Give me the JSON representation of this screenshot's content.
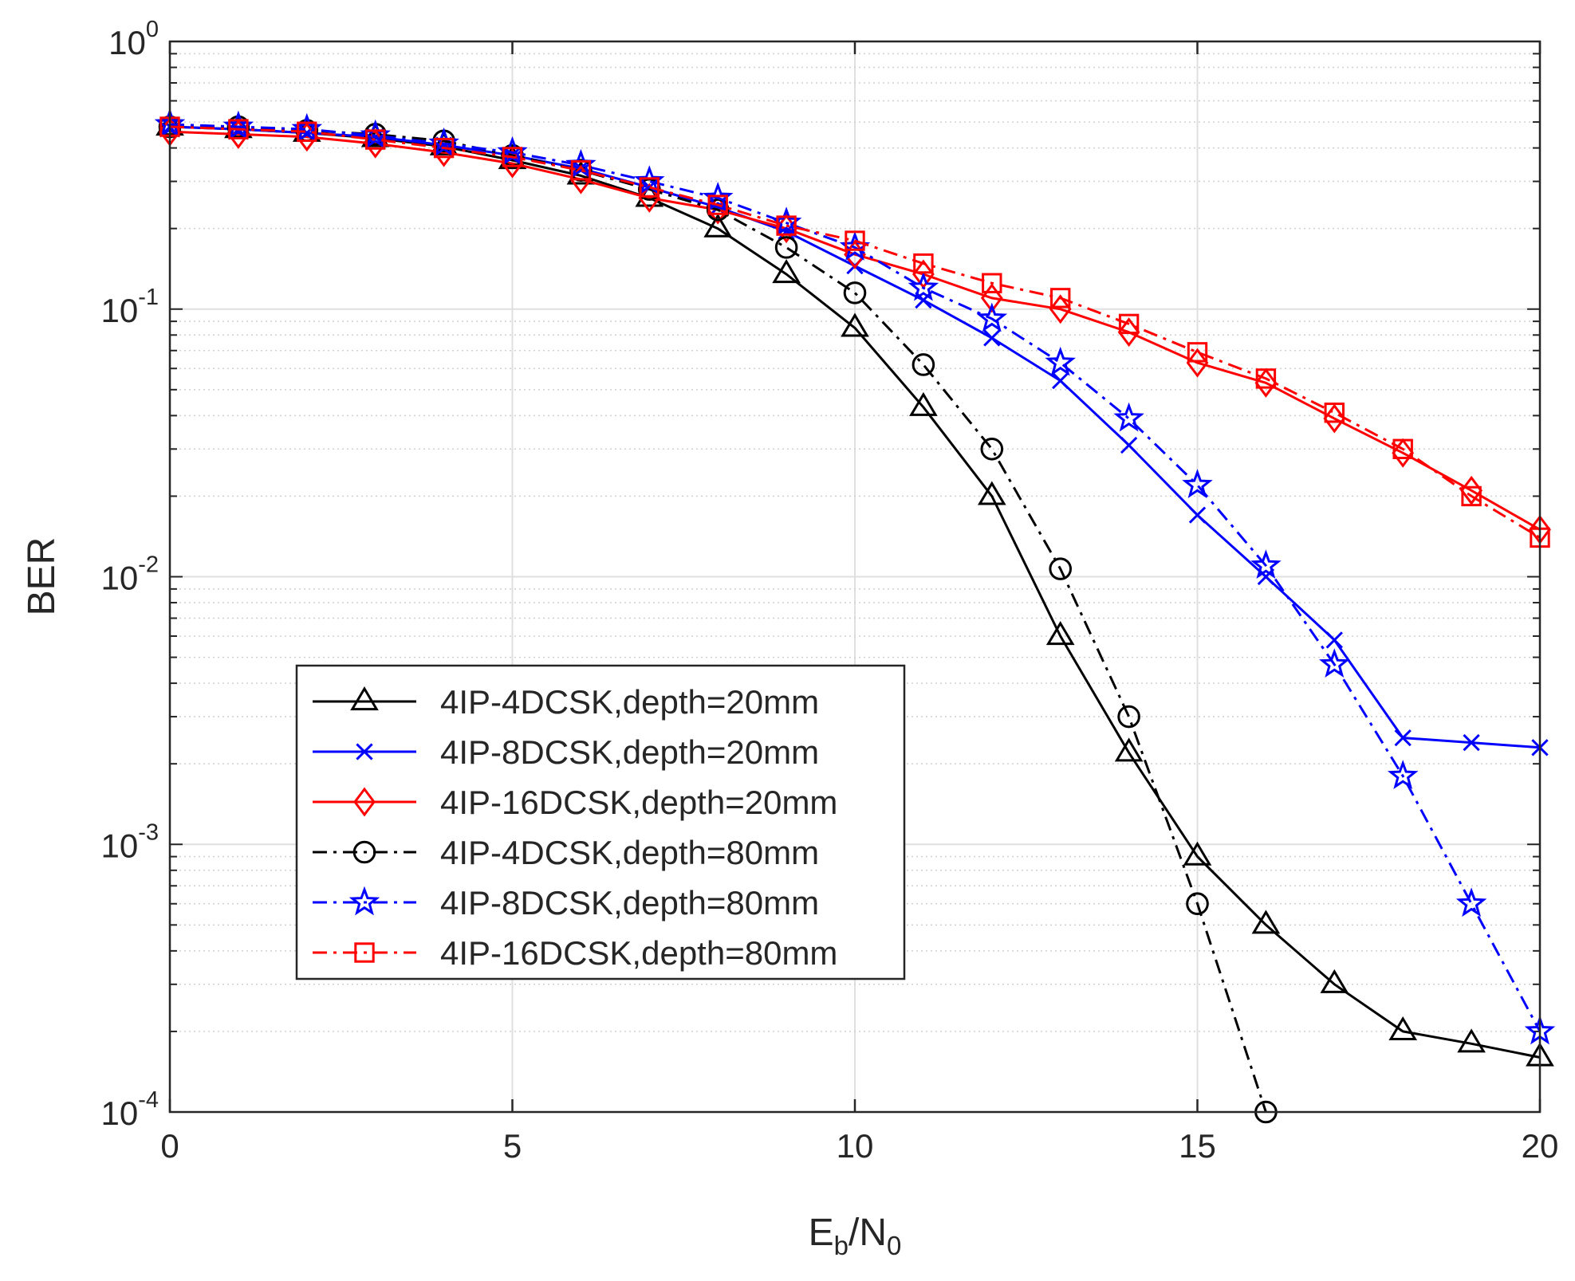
{
  "chart_data": {
    "type": "line",
    "title": "",
    "xlabel": {
      "main": "E",
      "sub1": "b",
      "mid": "/N",
      "sub2": "0"
    },
    "ylabel": "BER",
    "xlim": [
      0,
      20
    ],
    "ylim": [
      0.0001,
      1
    ],
    "yscale": "log",
    "grid": true,
    "legend_position": "lower-left",
    "x_ticks": [
      {
        "value": 0,
        "label": "0"
      },
      {
        "value": 5,
        "label": "5"
      },
      {
        "value": 10,
        "label": "10"
      },
      {
        "value": 15,
        "label": "15"
      },
      {
        "value": 20,
        "label": "20"
      }
    ],
    "y_ticks": [
      {
        "value": 1,
        "base": "10",
        "exp": "0"
      },
      {
        "value": 0.1,
        "base": "10",
        "exp": "-1"
      },
      {
        "value": 0.01,
        "base": "10",
        "exp": "-2"
      },
      {
        "value": 0.001,
        "base": "10",
        "exp": "-3"
      },
      {
        "value": 0.0001,
        "base": "10",
        "exp": "-4"
      }
    ],
    "series": [
      {
        "name": "4IP-4DCSK,depth=20mm",
        "color": "#000000",
        "dash": "solid",
        "marker": "triangle",
        "x": [
          0,
          1,
          2,
          3,
          4,
          5,
          6,
          7,
          8,
          9,
          10,
          11,
          12,
          13,
          14,
          15,
          16,
          17,
          18,
          19,
          20
        ],
        "values": [
          0.48,
          0.47,
          0.455,
          0.435,
          0.405,
          0.36,
          0.315,
          0.26,
          0.2,
          0.135,
          0.085,
          0.043,
          0.02,
          0.006,
          0.0022,
          0.0009,
          0.0005,
          0.0003,
          0.0002,
          0.00018,
          0.00016
        ]
      },
      {
        "name": "4IP-8DCSK,depth=20mm",
        "color": "#0000ff",
        "dash": "solid",
        "marker": "x",
        "x": [
          0,
          1,
          2,
          3,
          4,
          5,
          6,
          7,
          8,
          9,
          10,
          11,
          12,
          13,
          14,
          15,
          16,
          17,
          18,
          19,
          20
        ],
        "values": [
          0.48,
          0.47,
          0.455,
          0.44,
          0.41,
          0.375,
          0.335,
          0.285,
          0.24,
          0.195,
          0.145,
          0.108,
          0.078,
          0.054,
          0.031,
          0.017,
          0.01,
          0.0058,
          0.0025,
          0.0024,
          0.0023
        ]
      },
      {
        "name": "4IP-16DCSK,depth=20mm",
        "color": "#ff0000",
        "dash": "solid",
        "marker": "diamond",
        "x": [
          0,
          1,
          2,
          3,
          4,
          5,
          6,
          7,
          8,
          9,
          10,
          11,
          12,
          13,
          14,
          15,
          16,
          17,
          18,
          19,
          20
        ],
        "values": [
          0.46,
          0.45,
          0.44,
          0.415,
          0.385,
          0.35,
          0.305,
          0.26,
          0.235,
          0.2,
          0.16,
          0.135,
          0.11,
          0.1,
          0.082,
          0.063,
          0.053,
          0.039,
          0.029,
          0.021,
          0.015
        ]
      },
      {
        "name": "4IP-4DCSK,depth=80mm",
        "color": "#000000",
        "dash": "dashdot",
        "marker": "circle",
        "x": [
          0,
          1,
          2,
          3,
          4,
          5,
          6,
          7,
          8,
          9,
          10,
          11,
          12,
          13,
          14,
          15,
          16
        ],
        "values": [
          0.48,
          0.48,
          0.465,
          0.45,
          0.425,
          0.375,
          0.33,
          0.28,
          0.235,
          0.17,
          0.115,
          0.062,
          0.03,
          0.0107,
          0.003,
          0.0006,
          0.0001
        ]
      },
      {
        "name": "4IP-8DCSK,depth=80mm",
        "color": "#0000ff",
        "dash": "dashdot",
        "marker": "star",
        "x": [
          0,
          1,
          2,
          3,
          4,
          5,
          6,
          7,
          8,
          9,
          10,
          11,
          12,
          13,
          14,
          15,
          16,
          17,
          18,
          19,
          20
        ],
        "values": [
          0.49,
          0.48,
          0.47,
          0.445,
          0.415,
          0.385,
          0.345,
          0.3,
          0.26,
          0.21,
          0.17,
          0.12,
          0.092,
          0.063,
          0.039,
          0.022,
          0.011,
          0.0047,
          0.0018,
          0.0006,
          0.0002
        ]
      },
      {
        "name": "4IP-16DCSK,depth=80mm",
        "color": "#ff0000",
        "dash": "dashdot",
        "marker": "square",
        "x": [
          0,
          1,
          2,
          3,
          4,
          5,
          6,
          7,
          8,
          9,
          10,
          11,
          12,
          13,
          14,
          15,
          16,
          17,
          18,
          19,
          20
        ],
        "values": [
          0.48,
          0.47,
          0.46,
          0.43,
          0.4,
          0.37,
          0.33,
          0.285,
          0.245,
          0.205,
          0.18,
          0.148,
          0.125,
          0.11,
          0.088,
          0.069,
          0.055,
          0.041,
          0.03,
          0.02,
          0.014
        ]
      }
    ]
  }
}
